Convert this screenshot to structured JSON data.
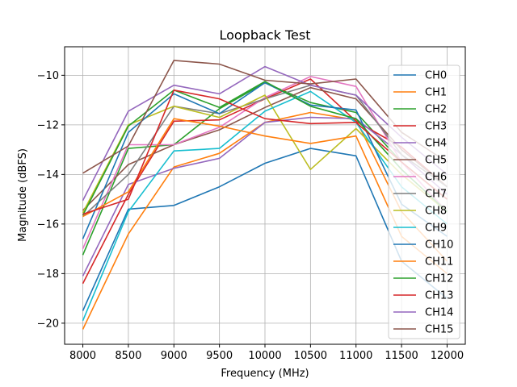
{
  "chart_data": {
    "type": "line",
    "title": "Loopback Test",
    "xlabel": "Frequency (MHz)",
    "ylabel": "Magnitude (dBFS)",
    "xlim": [
      7800,
      12200
    ],
    "ylim": [
      -20.85,
      -8.85
    ],
    "x": [
      8000,
      8500,
      9000,
      9500,
      10000,
      10500,
      11000,
      11500,
      12000
    ],
    "xticks": [
      8000,
      8500,
      9000,
      9500,
      10000,
      10500,
      11000,
      11500,
      12000
    ],
    "xtick_labels": [
      "8000",
      "8500",
      "9000",
      "9500",
      "10000",
      "10500",
      "11000",
      "11500",
      "12000"
    ],
    "yticks": [
      -20,
      -18,
      -16,
      -14,
      -12,
      -10
    ],
    "ytick_labels": [
      "−20",
      "−18",
      "−16",
      "−14",
      "−12",
      "−10"
    ],
    "grid": true,
    "legend_position": "right",
    "series": [
      {
        "name": "CH0",
        "color": "#1f77b4",
        "values": [
          -19.5,
          -15.4,
          -15.25,
          -14.5,
          -13.55,
          -12.95,
          -13.25,
          -17.5,
          -19.0
        ]
      },
      {
        "name": "CH1",
        "color": "#ff7f0e",
        "values": [
          -20.25,
          -16.4,
          -13.7,
          -13.15,
          -11.9,
          -11.5,
          -11.8,
          -15.5,
          -17.5
        ]
      },
      {
        "name": "CH2",
        "color": "#2ca02c",
        "values": [
          -17.25,
          -12.95,
          -12.8,
          -11.35,
          -10.3,
          -11.1,
          -11.5,
          -13.5,
          -15.0
        ]
      },
      {
        "name": "CH3",
        "color": "#d62728",
        "values": [
          -18.4,
          -14.8,
          -11.85,
          -11.8,
          -10.95,
          -10.15,
          -11.85,
          -12.9,
          -14.5
        ]
      },
      {
        "name": "CH4",
        "color": "#9467bd",
        "values": [
          -18.1,
          -14.4,
          -13.75,
          -13.35,
          -11.9,
          -11.7,
          -11.75,
          -13.2,
          -14.8
        ]
      },
      {
        "name": "CH5",
        "color": "#8c564b",
        "values": [
          -15.45,
          -13.6,
          -12.8,
          -12.2,
          -11.3,
          -10.5,
          -10.95,
          -13.0,
          -14.5
        ]
      },
      {
        "name": "CH6",
        "color": "#e377c2",
        "values": [
          -17.0,
          -12.8,
          -12.8,
          -12.1,
          -10.9,
          -10.05,
          -10.45,
          -13.5,
          -15.5
        ]
      },
      {
        "name": "CH7",
        "color": "#7f7f7f",
        "values": [
          -15.7,
          -14.0,
          -11.25,
          -11.55,
          -10.95,
          -10.4,
          -10.8,
          -13.2,
          -14.5
        ]
      },
      {
        "name": "CH8",
        "color": "#bcbd22",
        "values": [
          -15.55,
          -12.0,
          -11.25,
          -11.7,
          -10.8,
          -13.8,
          -12.15,
          -14.0,
          -15.5
        ]
      },
      {
        "name": "CH9",
        "color": "#17becf",
        "values": [
          -19.9,
          -15.5,
          -13.05,
          -12.95,
          -11.45,
          -10.65,
          -11.9,
          -14.5,
          -16.0
        ]
      },
      {
        "name": "CH10",
        "color": "#1f77b4",
        "values": [
          -16.6,
          -12.3,
          -10.75,
          -11.55,
          -10.3,
          -11.2,
          -11.4,
          -15.2,
          -16.5
        ]
      },
      {
        "name": "CH11",
        "color": "#ff7f0e",
        "values": [
          -15.7,
          -14.7,
          -11.75,
          -12.05,
          -12.45,
          -12.75,
          -12.45,
          -16.5,
          -18.0
        ]
      },
      {
        "name": "CH12",
        "color": "#2ca02c",
        "values": [
          -15.65,
          -12.05,
          -10.6,
          -11.3,
          -10.25,
          -11.25,
          -11.75,
          -13.8,
          -15.5
        ]
      },
      {
        "name": "CH13",
        "color": "#d62728",
        "values": [
          -15.6,
          -15.0,
          -10.6,
          -10.95,
          -11.75,
          -11.95,
          -11.9,
          -13.5,
          -15.0
        ]
      },
      {
        "name": "CH14",
        "color": "#9467bd",
        "values": [
          -15.05,
          -11.45,
          -10.4,
          -10.75,
          -9.65,
          -10.4,
          -10.8,
          -12.5,
          -14.0
        ]
      },
      {
        "name": "CH15",
        "color": "#8c564b",
        "values": [
          -13.95,
          -12.85,
          -9.4,
          -9.55,
          -10.2,
          -10.35,
          -10.15,
          -12.3,
          -13.5
        ]
      }
    ]
  }
}
